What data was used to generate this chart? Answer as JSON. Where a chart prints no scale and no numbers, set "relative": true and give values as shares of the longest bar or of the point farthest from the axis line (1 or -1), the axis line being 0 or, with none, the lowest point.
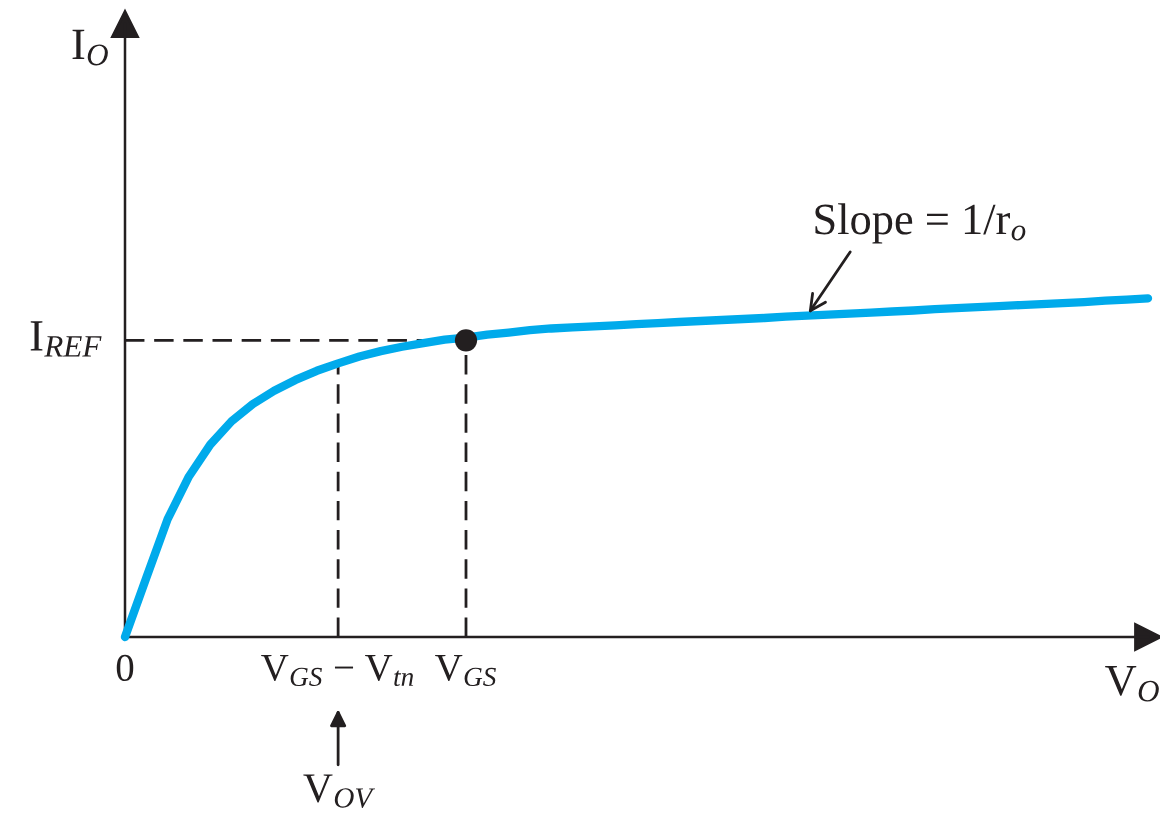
{
  "chart_data": {
    "type": "line",
    "relative": true,
    "xlabel": "V$_{O}$",
    "categories": [
      "0",
      null,
      null,
      null,
      null,
      null,
      null,
      null,
      null,
      null,
      "V$_{GS}$ − V$_{tn}$",
      null,
      null,
      null,
      null,
      null,
      "V$_{GS}$",
      null,
      null,
      null,
      null,
      null,
      null,
      null,
      null,
      null,
      null,
      null,
      null,
      null,
      null,
      null,
      null,
      null,
      null,
      null,
      null,
      null,
      null,
      null,
      null,
      null,
      null,
      null,
      null,
      null,
      null,
      null,
      null
    ],
    "series": [
      {
        "color": "#231f20",
        "line_style": "dashed",
        "x": [
          "0",
          "V$_{GS}$"
        ],
        "values": [
          0.876,
          0.876
        ]
      },
      {
        "color": "#231f20",
        "line_style": "dashed",
        "x": [
          "V$_{GS}$",
          "V$_{GS}$"
        ],
        "values": [
          0,
          0.876
        ]
      },
      {
        "color": "#231f20",
        "line_style": "dashed",
        "x": [
          "V$_{GS}$ − V$_{tn}$",
          "V$_{GS}$ − V$_{tn}$"
        ],
        "values": [
          0,
          0.808
        ]
      },
      {
        "color": "#00aaeb",
        "line_style": "solid",
        "values": [
          0,
          0.175,
          0.348,
          0.474,
          0.568,
          0.637,
          0.688,
          0.727,
          0.759,
          0.786,
          0.808,
          0.828,
          0.844,
          0.857,
          0.868,
          0.878,
          0.884,
          0.893,
          0.899,
          0.906,
          0.911,
          0.914,
          0.917,
          0.92,
          0.924,
          0.927,
          0.93,
          0.933,
          0.936,
          0.939,
          0.942,
          0.946,
          0.949,
          0.952,
          0.955,
          0.958,
          0.961,
          0.964,
          0.968,
          0.971,
          0.974,
          0.977,
          0.98,
          0.983,
          0.986,
          0.989,
          0.993,
          0.996,
          1.0
        ]
      },
      {
        "type": "scatter",
        "color": "#231f20",
        "marker": "circle",
        "x": [
          "V$_{GS}$"
        ],
        "values": [
          0.876
        ]
      }
    ],
    "annotations": [
      "I$_{O}$",
      "Slope = 1/r$_{o}$",
      "I$_{REF}$",
      "V$_{OV}$"
    ],
    "grid": false
  }
}
